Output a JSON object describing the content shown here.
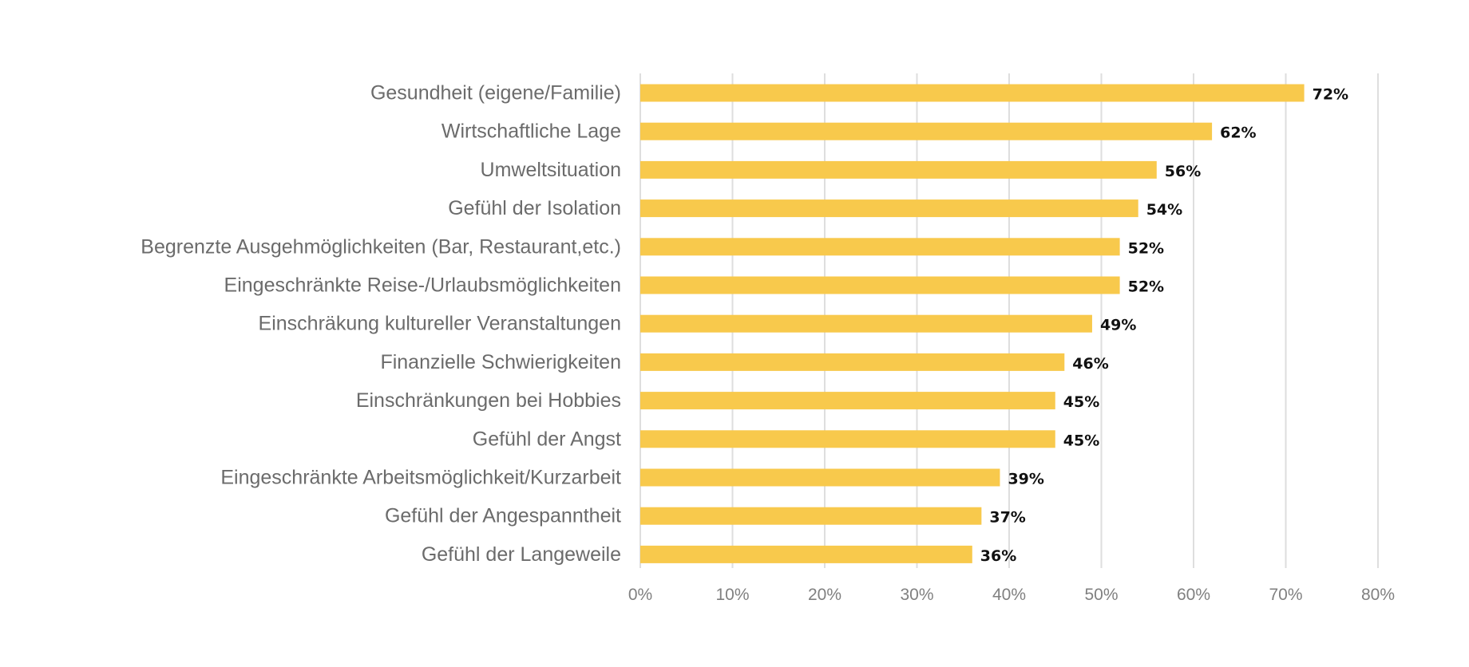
{
  "chart_data": {
    "type": "bar",
    "orientation": "horizontal",
    "categories": [
      "Gesundheit (eigene/Familie)",
      "Wirtschaftliche Lage",
      "Umweltsituation",
      "Gefühl der Isolation",
      "Begrenzte Ausgehmöglichkeiten (Bar, Restaurant,etc.)",
      "Eingeschränkte Reise-/Urlaubsmöglichkeiten",
      "Einschräkung kultureller Veranstaltungen",
      "Finanzielle Schwierigkeiten",
      "Einschränkungen bei Hobbies",
      "Gefühl der Angst",
      "Eingeschränkte Arbeitsmöglichkeit/Kurzarbeit",
      "Gefühl der Angespanntheit",
      "Gefühl der Langeweile"
    ],
    "values": [
      72,
      62,
      56,
      54,
      52,
      52,
      49,
      46,
      45,
      45,
      39,
      37,
      36
    ],
    "value_labels": [
      "72%",
      "62%",
      "56%",
      "54%",
      "52%",
      "52%",
      "49%",
      "46%",
      "45%",
      "45%",
      "39%",
      "37%",
      "36%"
    ],
    "xlim": [
      0,
      80
    ],
    "x_ticks": [
      0,
      10,
      20,
      30,
      40,
      50,
      60,
      70,
      80
    ],
    "x_tick_labels": [
      "0%",
      "10%",
      "20%",
      "30%",
      "40%",
      "50%",
      "60%",
      "70%",
      "80%"
    ],
    "grid": true,
    "bar_color": "#f8c94c",
    "grid_color": "#dedede"
  }
}
